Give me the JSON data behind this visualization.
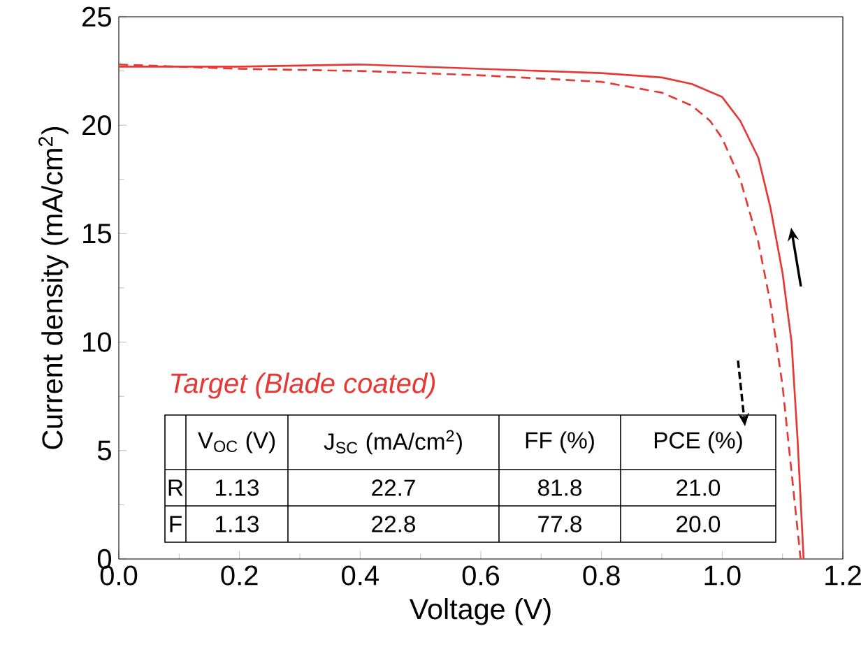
{
  "chart_data": {
    "type": "line",
    "xlabel": "Voltage (V)",
    "ylabel": "Current density (mA/cm$^{2}$)",
    "x": [
      0,
      0.2,
      0.4,
      0.6,
      0.8,
      0.9,
      0.95,
      1.0,
      1.03,
      1.06,
      1.08,
      1.1,
      1.115,
      1.125,
      1.135
    ],
    "series": [
      {
        "color": "#e53935",
        "line_style": "solid",
        "values": [
          22.7,
          22.7,
          22.8,
          22.6,
          22.4,
          22.2,
          21.9,
          21.3,
          20.2,
          18.5,
          16.2,
          13.2,
          10.0,
          5.5,
          0
        ]
      },
      {
        "color": "#e53935",
        "line_style": "dashed",
        "x": [
          0,
          0.2,
          0.4,
          0.6,
          0.8,
          0.9,
          0.95,
          0.98,
          1.0,
          1.03,
          1.06,
          1.08,
          1.1,
          1.115,
          1.13
        ],
        "values": [
          22.8,
          22.6,
          22.5,
          22.3,
          22.0,
          21.5,
          20.9,
          20.2,
          19.4,
          17.5,
          14.6,
          11.8,
          8.0,
          4.0,
          0
        ]
      }
    ],
    "xlim": [
      0,
      1.2
    ],
    "ylim": [
      0,
      25
    ],
    "xticks": [
      {
        "value": 0,
        "label": "0.0"
      },
      {
        "value": 0.2,
        "label": "0.2"
      },
      {
        "value": 0.4,
        "label": "0.4"
      },
      {
        "value": 0.6,
        "label": "0.6"
      },
      {
        "value": 0.8,
        "label": "0.8"
      },
      {
        "value": 1.0,
        "label": "1.0"
      },
      {
        "value": 1.2,
        "label": "1.2"
      }
    ],
    "yticks": [
      0,
      5,
      10,
      15,
      20,
      25
    ],
    "grid": false,
    "marker": "none",
    "annotations": [
      "*Target (Blade coated)*",
      "V$_{OC}$ (V)",
      "J$_{SC}$ (mA/cm$^{2}$)",
      "FF (%)",
      "PCE (%)",
      "R",
      "1.13",
      "22.7",
      "81.8",
      "21.0",
      "F",
      "1.13",
      "22.8",
      "77.8",
      "20.0"
    ]
  }
}
